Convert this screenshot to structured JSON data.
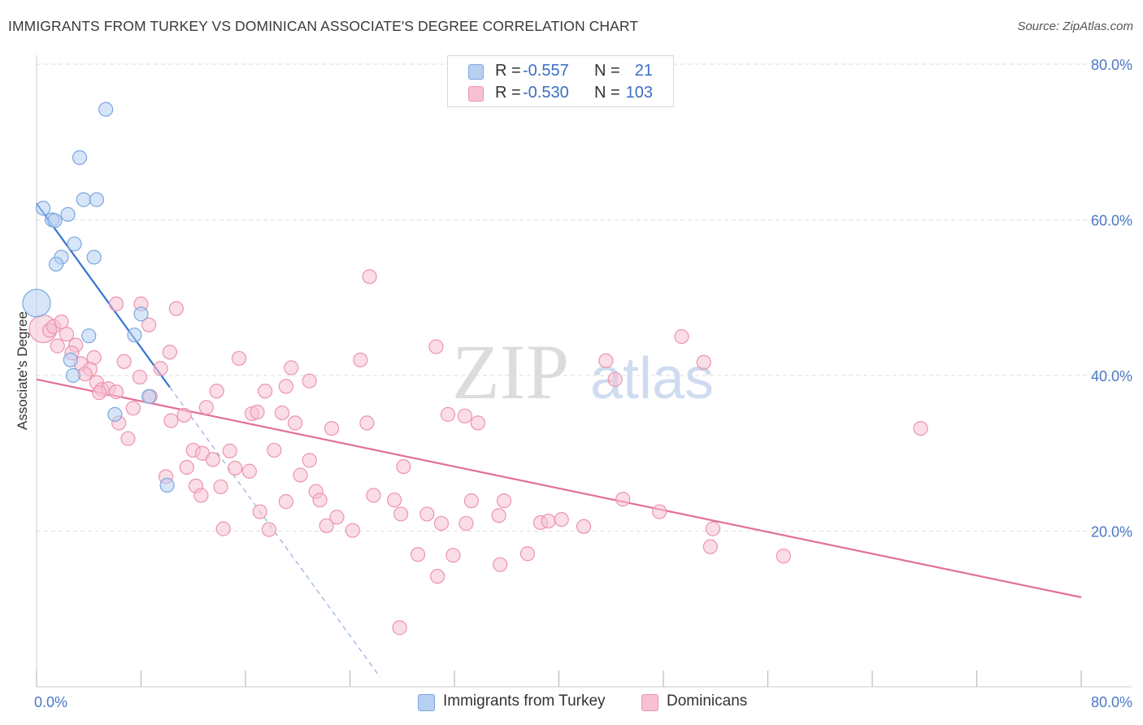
{
  "title": "IMMIGRANTS FROM TURKEY VS DOMINICAN ASSOCIATE'S DEGREE CORRELATION CHART",
  "source": "Source: ZipAtlas.com",
  "watermark": {
    "zip": "ZIP",
    "atlas": "atlas"
  },
  "colors": {
    "blue_fill": "#b7d0f2",
    "blue_stroke": "#7aa7e0",
    "blue_line": "#3573d0",
    "pink_fill": "#f7c1d2",
    "pink_stroke": "#eb94b0",
    "pink_line": "#e36f9a",
    "tick": "#4a78c7",
    "grid": "#dedede"
  },
  "legend": {
    "rows": [
      {
        "r_label": "R =",
        "r_value": "-0.557",
        "n_label": "N =",
        "n_value": "21"
      },
      {
        "r_label": "R =",
        "r_value": "-0.530",
        "n_label": "N =",
        "n_value": "103"
      }
    ]
  },
  "bottom_legend": {
    "blue": "Immigrants from Turkey",
    "pink": "Dominicans"
  },
  "chart_data": {
    "type": "scatter",
    "xlabel": "",
    "ylabel": "Associate's Degree",
    "xlim": [
      0,
      80
    ],
    "ylim": [
      0,
      80
    ],
    "x_tick_labels": {
      "min": "0.0%",
      "max": "80.0%"
    },
    "y_ticks": [
      {
        "value": 20,
        "label": "20.0%"
      },
      {
        "value": 40,
        "label": "40.0%"
      },
      {
        "value": 60,
        "label": "60.0%"
      },
      {
        "value": 80,
        "label": "80.0%"
      }
    ],
    "series": [
      {
        "name": "Immigrants from Turkey",
        "color": "blue",
        "trend": {
          "x0": 0,
          "y0": 62.1,
          "x1": 10.2,
          "y1": 38.5,
          "dash_to_x": 26.3
        },
        "points": [
          {
            "x": 0.5,
            "y": 61.5
          },
          {
            "x": 1.2,
            "y": 60.0
          },
          {
            "x": 1.4,
            "y": 59.9
          },
          {
            "x": 2.4,
            "y": 60.7
          },
          {
            "x": 3.3,
            "y": 68.0
          },
          {
            "x": 3.6,
            "y": 62.6
          },
          {
            "x": 4.6,
            "y": 62.6
          },
          {
            "x": 5.3,
            "y": 74.2
          },
          {
            "x": 2.9,
            "y": 56.9
          },
          {
            "x": 1.9,
            "y": 55.2
          },
          {
            "x": 1.5,
            "y": 54.3
          },
          {
            "x": 4.4,
            "y": 55.2
          },
          {
            "x": 0.0,
            "y": 49.3,
            "big": true
          },
          {
            "x": 8.0,
            "y": 47.9
          },
          {
            "x": 4.0,
            "y": 45.1
          },
          {
            "x": 7.5,
            "y": 45.2
          },
          {
            "x": 2.8,
            "y": 40.0
          },
          {
            "x": 8.6,
            "y": 37.3
          },
          {
            "x": 6.0,
            "y": 35.0
          },
          {
            "x": 10.0,
            "y": 25.9
          },
          {
            "x": 2.6,
            "y": 42.0
          }
        ]
      },
      {
        "name": "Dominicans",
        "color": "pink",
        "trend": {
          "x0": 0,
          "y0": 39.5,
          "x1": 80,
          "y1": 11.5
        },
        "points": [
          {
            "x": 0.5,
            "y": 46.0,
            "big": true
          },
          {
            "x": 1.0,
            "y": 45.8
          },
          {
            "x": 1.3,
            "y": 46.3
          },
          {
            "x": 1.9,
            "y": 46.9
          },
          {
            "x": 2.3,
            "y": 45.3
          },
          {
            "x": 1.6,
            "y": 43.8
          },
          {
            "x": 3.0,
            "y": 43.9
          },
          {
            "x": 2.7,
            "y": 42.9
          },
          {
            "x": 4.4,
            "y": 42.3
          },
          {
            "x": 3.4,
            "y": 41.5
          },
          {
            "x": 4.1,
            "y": 40.8
          },
          {
            "x": 3.7,
            "y": 40.2
          },
          {
            "x": 4.6,
            "y": 39.1
          },
          {
            "x": 5.0,
            "y": 38.2
          },
          {
            "x": 5.5,
            "y": 38.3
          },
          {
            "x": 6.1,
            "y": 37.9
          },
          {
            "x": 4.8,
            "y": 37.8
          },
          {
            "x": 6.1,
            "y": 49.2
          },
          {
            "x": 8.0,
            "y": 49.2
          },
          {
            "x": 10.7,
            "y": 48.6
          },
          {
            "x": 8.6,
            "y": 46.5
          },
          {
            "x": 6.7,
            "y": 41.8
          },
          {
            "x": 7.9,
            "y": 39.8
          },
          {
            "x": 9.5,
            "y": 40.9
          },
          {
            "x": 10.2,
            "y": 43.0
          },
          {
            "x": 8.7,
            "y": 37.3
          },
          {
            "x": 7.4,
            "y": 35.8
          },
          {
            "x": 6.3,
            "y": 33.9
          },
          {
            "x": 7.0,
            "y": 31.9
          },
          {
            "x": 10.3,
            "y": 34.2
          },
          {
            "x": 11.3,
            "y": 34.9
          },
          {
            "x": 13.0,
            "y": 35.9
          },
          {
            "x": 13.8,
            "y": 38.0
          },
          {
            "x": 15.5,
            "y": 42.2
          },
          {
            "x": 16.5,
            "y": 35.1
          },
          {
            "x": 16.9,
            "y": 35.3
          },
          {
            "x": 17.5,
            "y": 38.0
          },
          {
            "x": 18.8,
            "y": 35.2
          },
          {
            "x": 19.8,
            "y": 33.9
          },
          {
            "x": 19.1,
            "y": 38.6
          },
          {
            "x": 19.5,
            "y": 41.0
          },
          {
            "x": 20.9,
            "y": 39.3
          },
          {
            "x": 22.6,
            "y": 33.2
          },
          {
            "x": 12.0,
            "y": 30.4
          },
          {
            "x": 12.7,
            "y": 30.0
          },
          {
            "x": 13.5,
            "y": 29.2
          },
          {
            "x": 14.8,
            "y": 30.3
          },
          {
            "x": 11.5,
            "y": 28.2
          },
          {
            "x": 15.2,
            "y": 28.1
          },
          {
            "x": 16.3,
            "y": 27.7
          },
          {
            "x": 18.2,
            "y": 30.4
          },
          {
            "x": 20.2,
            "y": 27.2
          },
          {
            "x": 20.9,
            "y": 29.1
          },
          {
            "x": 9.9,
            "y": 27.0
          },
          {
            "x": 12.2,
            "y": 25.8
          },
          {
            "x": 12.6,
            "y": 24.6
          },
          {
            "x": 14.1,
            "y": 25.7
          },
          {
            "x": 17.1,
            "y": 22.5
          },
          {
            "x": 19.1,
            "y": 23.8
          },
          {
            "x": 21.4,
            "y": 25.1
          },
          {
            "x": 21.7,
            "y": 24.0
          },
          {
            "x": 14.3,
            "y": 20.3
          },
          {
            "x": 17.8,
            "y": 20.2
          },
          {
            "x": 22.2,
            "y": 20.7
          },
          {
            "x": 23.0,
            "y": 21.8
          },
          {
            "x": 24.2,
            "y": 20.1
          },
          {
            "x": 25.8,
            "y": 24.6
          },
          {
            "x": 27.4,
            "y": 24.0
          },
          {
            "x": 27.9,
            "y": 22.2
          },
          {
            "x": 28.1,
            "y": 28.3
          },
          {
            "x": 29.9,
            "y": 22.2
          },
          {
            "x": 31.0,
            "y": 21.0
          },
          {
            "x": 32.9,
            "y": 21.0
          },
          {
            "x": 33.3,
            "y": 23.9
          },
          {
            "x": 35.4,
            "y": 22.0
          },
          {
            "x": 35.8,
            "y": 23.9
          },
          {
            "x": 38.6,
            "y": 21.1
          },
          {
            "x": 39.2,
            "y": 21.3
          },
          {
            "x": 40.2,
            "y": 21.5
          },
          {
            "x": 41.9,
            "y": 20.6
          },
          {
            "x": 44.9,
            "y": 24.1
          },
          {
            "x": 47.7,
            "y": 22.5
          },
          {
            "x": 51.8,
            "y": 20.3
          },
          {
            "x": 51.6,
            "y": 18.0
          },
          {
            "x": 57.2,
            "y": 16.8
          },
          {
            "x": 29.2,
            "y": 17.0
          },
          {
            "x": 30.7,
            "y": 14.2
          },
          {
            "x": 31.9,
            "y": 16.9
          },
          {
            "x": 35.5,
            "y": 15.7
          },
          {
            "x": 37.6,
            "y": 17.1
          },
          {
            "x": 27.8,
            "y": 7.6
          },
          {
            "x": 25.5,
            "y": 52.7
          },
          {
            "x": 24.8,
            "y": 42.0
          },
          {
            "x": 30.6,
            "y": 43.7
          },
          {
            "x": 31.5,
            "y": 35.0
          },
          {
            "x": 32.8,
            "y": 34.8
          },
          {
            "x": 33.8,
            "y": 33.9
          },
          {
            "x": 25.3,
            "y": 33.9
          },
          {
            "x": 43.6,
            "y": 41.9
          },
          {
            "x": 44.3,
            "y": 39.5
          },
          {
            "x": 49.4,
            "y": 45.0
          },
          {
            "x": 51.1,
            "y": 41.7
          },
          {
            "x": 67.7,
            "y": 33.2
          }
        ]
      }
    ]
  }
}
